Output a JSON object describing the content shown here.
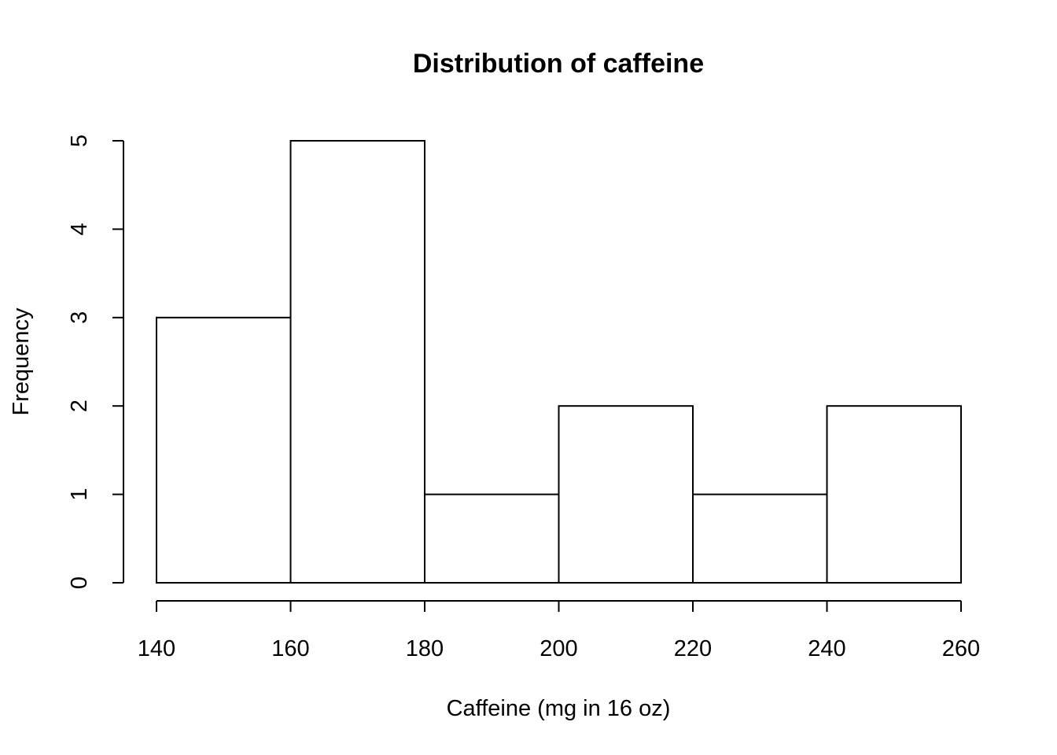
{
  "chart_data": {
    "type": "bar",
    "title": "Distribution of caffeine",
    "xlabel": "Caffeine (mg in 16 oz)",
    "ylabel": "Frequency",
    "bins": [
      {
        "from": 140,
        "to": 160,
        "count": 3
      },
      {
        "from": 160,
        "to": 180,
        "count": 5
      },
      {
        "from": 180,
        "to": 200,
        "count": 1
      },
      {
        "from": 200,
        "to": 220,
        "count": 2
      },
      {
        "from": 220,
        "to": 240,
        "count": 1
      },
      {
        "from": 240,
        "to": 260,
        "count": 2
      }
    ],
    "xlim": [
      140,
      260
    ],
    "ylim": [
      0,
      5
    ],
    "x_ticks": [
      140,
      160,
      180,
      200,
      220,
      240,
      260
    ],
    "y_ticks": [
      0,
      1,
      2,
      3,
      4,
      5
    ],
    "grid": false,
    "legend": "none",
    "colors": {
      "bar_fill": "#ffffff",
      "bar_stroke": "#000000"
    }
  }
}
